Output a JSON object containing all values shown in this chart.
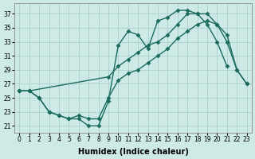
{
  "xlabel": "Humidex (Indice chaleur)",
  "xlim": [
    -0.5,
    23.5
  ],
  "ylim": [
    20.0,
    38.5
  ],
  "xticks": [
    0,
    1,
    2,
    3,
    4,
    5,
    6,
    7,
    8,
    9,
    10,
    11,
    12,
    13,
    14,
    15,
    16,
    17,
    18,
    19,
    20,
    21,
    22,
    23
  ],
  "yticks": [
    21,
    23,
    25,
    27,
    29,
    31,
    33,
    35,
    37
  ],
  "bg_color": "#ceeae6",
  "grid_color": "#aacfca",
  "line_color": "#1a6b5e",
  "line1_x": [
    0,
    1,
    2,
    3,
    4,
    5,
    6,
    7,
    8,
    9,
    10,
    11,
    12,
    13,
    14,
    15,
    16,
    17,
    18,
    19,
    20,
    21,
    22,
    23
  ],
  "line1_y": [
    26.0,
    26.0,
    25.0,
    23.0,
    22.5,
    22.0,
    22.0,
    21.0,
    21.0,
    24.5,
    32.5,
    34.5,
    34.0,
    32.0,
    36.0,
    36.5,
    37.5,
    37.5,
    37.0,
    35.5,
    33.0,
    29.5,
    null,
    null
  ],
  "line2_x": [
    0,
    1,
    2,
    3,
    4,
    5,
    6,
    7,
    8,
    9,
    10,
    11,
    12,
    13,
    14,
    15,
    16,
    17,
    18,
    19,
    20,
    21,
    22,
    23
  ],
  "line2_y": [
    26.0,
    26.0,
    null,
    null,
    null,
    null,
    null,
    null,
    null,
    28.0,
    29.5,
    30.5,
    31.5,
    32.5,
    33.0,
    34.0,
    35.5,
    37.0,
    37.0,
    37.0,
    35.5,
    33.0,
    29.0,
    27.0
  ],
  "line3_x": [
    0,
    1,
    2,
    3,
    4,
    5,
    6,
    7,
    8,
    9,
    10,
    11,
    12,
    13,
    14,
    15,
    16,
    17,
    18,
    19,
    20,
    21,
    22,
    23
  ],
  "line3_y": [
    26.0,
    26.0,
    25.0,
    23.0,
    22.5,
    22.0,
    22.5,
    22.0,
    22.0,
    25.0,
    27.5,
    28.5,
    29.0,
    30.0,
    31.0,
    32.0,
    33.5,
    34.5,
    35.5,
    36.0,
    35.5,
    34.0,
    29.0,
    27.0
  ],
  "marker": "D",
  "markersize": 2.5,
  "linewidth": 1.0,
  "tick_fontsize": 5.5,
  "label_fontsize": 7.0
}
